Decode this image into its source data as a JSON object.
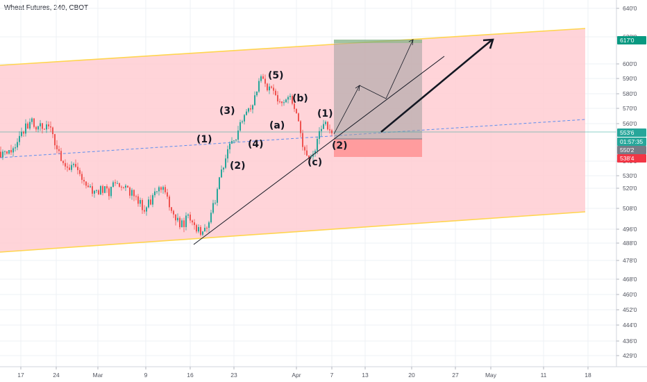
{
  "chart_data": {
    "type": "candlestick",
    "title": "Wheat Futures, 240, CBOT",
    "x_ticks": [
      "17",
      "24",
      "Mar",
      "9",
      "16",
      "23",
      "Apr",
      "7",
      "13",
      "20",
      "27",
      "May",
      "11",
      "18"
    ],
    "y_ticks": [
      "640'0",
      "620'0",
      "600'0",
      "590'0",
      "580'0",
      "570'0",
      "560'0",
      "540'0",
      "530'0",
      "520'0",
      "508'0",
      "496'0",
      "488'0",
      "478'0",
      "468'0",
      "460'0",
      "452'0",
      "444'0",
      "436'0",
      "429'0"
    ],
    "y_tick_values": [
      640,
      620,
      600,
      590,
      580,
      570,
      560,
      540,
      530,
      520,
      508,
      496,
      488,
      478,
      468,
      460,
      452,
      444,
      436,
      429
    ],
    "price_tags": [
      {
        "label": "617'0",
        "value": 617,
        "color": "#089981"
      },
      {
        "label": "553'6",
        "value": 553.75,
        "color": "#26a69a"
      },
      {
        "label": "01:57:35",
        "value": 548.5,
        "color": "#26a69a"
      },
      {
        "label": "550'2",
        "value": 545,
        "color": "#787b86"
      },
      {
        "label": "538'4",
        "value": 538.5,
        "color": "#f23645"
      }
    ],
    "wave_labels": [
      {
        "text": "(1)",
        "x": "Mar 19",
        "y": 550
      },
      {
        "text": "(2)",
        "x": "Mar 22",
        "y": 538
      },
      {
        "text": "(3)",
        "x": "Mar 22",
        "y": 568
      },
      {
        "text": "(4)",
        "x": "Mar 26",
        "y": 548
      },
      {
        "text": "(5)",
        "x": "Mar 29",
        "y": 592
      },
      {
        "text": "(a)",
        "x": "Mar 30",
        "y": 563
      },
      {
        "text": "(b)",
        "x": "Apr 1",
        "y": 579
      },
      {
        "text": "(c)",
        "x": "Apr 3",
        "y": 539
      },
      {
        "text": "(1)",
        "x": "Apr 5",
        "y": 567
      },
      {
        "text": "(2)",
        "x": "Apr 7",
        "y": 548
      }
    ],
    "colors": {
      "up": "#26a69a",
      "down": "#ef5350",
      "channel": "#ffcdd2",
      "channel_edge": "#ffd54f",
      "trend": "#131722"
    }
  }
}
